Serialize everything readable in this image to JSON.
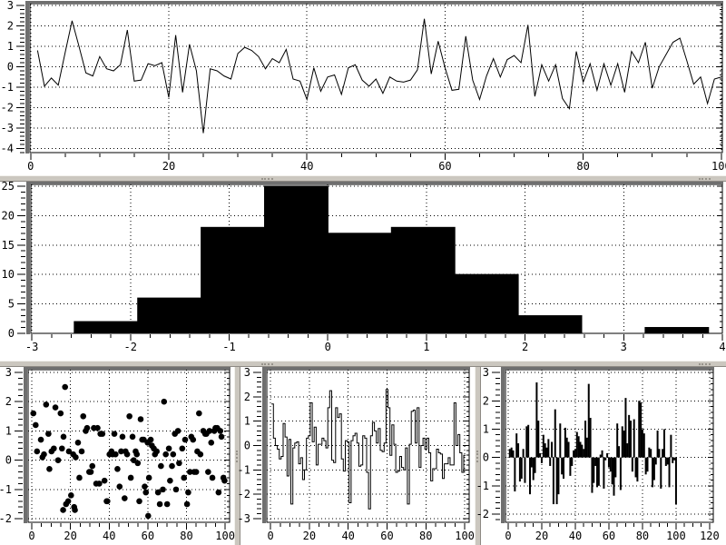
{
  "colors": {
    "background": "#ffffff",
    "plot_ink": "#000000",
    "grid": "#000000",
    "sash": "#cbc7bf",
    "sash_highlight": "#f2f1ed",
    "sash_shadow": "#8e8a84",
    "panel_shadow": "#6f6f6f"
  },
  "chart_data": [
    {
      "id": "noise-line",
      "type": "line",
      "title": "",
      "xlabel": "",
      "ylabel": "",
      "grid": true,
      "xlim": [
        -0.1,
        100.15
      ],
      "ylim": [
        -4.2,
        3.09
      ],
      "x_ticks": {
        "values": [
          0,
          20,
          40,
          60,
          80,
          100
        ],
        "labels": [
          "0",
          "20",
          "40",
          "60",
          "80",
          "100"
        ],
        "minor_step": 5
      },
      "y_ticks": {
        "values": [
          3,
          2,
          1,
          0,
          -1,
          -2,
          -3,
          -4
        ],
        "labels": [
          "3",
          "2",
          "1",
          "0",
          "-1",
          "-2",
          "-3",
          "-4"
        ],
        "minor_step": 0.2
      },
      "x_start": 1,
      "x_step": 1,
      "values": [
        0.8,
        -0.95,
        -0.55,
        -0.9,
        0.7,
        2.25,
        1.0,
        -0.3,
        -0.45,
        0.5,
        -0.1,
        -0.2,
        0.1,
        1.8,
        -0.7,
        -0.65,
        0.15,
        0.05,
        0.2,
        -1.5,
        1.55,
        -1.25,
        1.1,
        -0.2,
        -3.25,
        -0.1,
        -0.2,
        -0.45,
        -0.6,
        0.65,
        0.95,
        0.8,
        0.5,
        -0.1,
        0.4,
        0.2,
        0.85,
        -0.6,
        -0.7,
        -1.6,
        -0.05,
        -1.2,
        -0.5,
        -0.4,
        -1.35,
        -0.05,
        0.1,
        -0.65,
        -0.95,
        -0.6,
        -1.3,
        -0.5,
        -0.7,
        -0.75,
        -0.65,
        -0.15,
        2.35,
        -0.35,
        1.25,
        -0.05,
        -1.15,
        -1.1,
        1.5,
        -0.65,
        -1.6,
        -0.45,
        0.4,
        -0.5,
        0.35,
        0.55,
        0.2,
        2.05,
        -1.45,
        0.1,
        -0.7,
        0.1,
        -1.55,
        -2.05,
        0.75,
        -0.75,
        0.15,
        -1.15,
        0.15,
        -0.9,
        0.15,
        -1.25,
        0.75,
        0.2,
        1.2,
        -1.05,
        0.0,
        0.6,
        1.2,
        1.4,
        0.3,
        -0.85,
        -0.5,
        -1.8,
        -0.6,
        -0.5
      ]
    },
    {
      "id": "histogram",
      "type": "histogram",
      "title": "",
      "xlabel": "",
      "ylabel": "",
      "grid": true,
      "xlim": [
        -3.01,
        4.0
      ],
      "ylim": [
        0,
        25.3
      ],
      "x_ticks": {
        "values": [
          -3,
          -2,
          -1,
          0,
          1,
          2,
          3,
          4
        ],
        "labels": [
          "-3",
          "-2",
          "-1",
          "0",
          "1",
          "2",
          "3",
          "4"
        ],
        "minor_step": 0.2
      },
      "y_ticks": {
        "values": [
          0,
          5,
          10,
          15,
          20,
          25
        ],
        "labels": [
          "0",
          "5",
          "10",
          "15",
          "20",
          "25"
        ],
        "minor_step": 1
      },
      "bin_start": -2.57,
      "bin_width": 0.643,
      "counts": [
        2,
        6,
        18,
        25,
        17,
        18,
        10,
        3,
        0,
        1
      ]
    },
    {
      "id": "scatter",
      "type": "scatter",
      "title": "",
      "xlabel": "",
      "ylabel": "",
      "grid": true,
      "xlim": [
        -1.9,
        102.3
      ],
      "ylim": [
        -2.12,
        3.09
      ],
      "x_ticks": {
        "values": [
          0,
          20,
          40,
          60,
          80,
          100
        ],
        "labels": [
          "0",
          "20",
          "40",
          "60",
          "80",
          "100"
        ],
        "minor_step": 5
      },
      "y_ticks": {
        "values": [
          3,
          2,
          1,
          0,
          -1,
          -2
        ],
        "labels": [
          "3",
          "2",
          "1",
          "0",
          "-1",
          "-2"
        ],
        "minor_step": 0.2
      },
      "points": [
        [
          0.8,
          1.6
        ],
        [
          2,
          1.2
        ],
        [
          2.7,
          0.3
        ],
        [
          4.7,
          0.7
        ],
        [
          5.5,
          0.1
        ],
        [
          6.3,
          0.2
        ],
        [
          7.4,
          1.9
        ],
        [
          8.6,
          0.9
        ],
        [
          9.1,
          -0.3
        ],
        [
          10.2,
          0.3
        ],
        [
          11.4,
          0.4
        ],
        [
          12.2,
          1.8
        ],
        [
          13.6,
          0
        ],
        [
          14.9,
          1.6
        ],
        [
          15.6,
          0.4
        ],
        [
          16.2,
          -1.7
        ],
        [
          16.4,
          0.8
        ],
        [
          17.2,
          2.5
        ],
        [
          17.7,
          -1.5
        ],
        [
          18.8,
          -1.4
        ],
        [
          19.2,
          0.3
        ],
        [
          20.3,
          -1.2
        ],
        [
          21.4,
          0.2
        ],
        [
          21.9,
          -1.6
        ],
        [
          22.3,
          -1.7
        ],
        [
          22.7,
          0.1
        ],
        [
          23.9,
          0.6
        ],
        [
          24.6,
          -0.6
        ],
        [
          25.8,
          0.3
        ],
        [
          26.6,
          1.5
        ],
        [
          27.9,
          1
        ],
        [
          28.6,
          1.1
        ],
        [
          29.7,
          -0.4
        ],
        [
          30.5,
          -0.4
        ],
        [
          31.3,
          -0.2
        ],
        [
          32.1,
          1.1
        ],
        [
          33.3,
          -0.8
        ],
        [
          34,
          1.1
        ],
        [
          34.9,
          -0.8
        ],
        [
          35.5,
          0.9
        ],
        [
          36.5,
          0.9
        ],
        [
          37.6,
          -0.7
        ],
        [
          38.7,
          -1.4
        ],
        [
          39.1,
          -1.4
        ],
        [
          40.2,
          0.2
        ],
        [
          41.2,
          0.3
        ],
        [
          41.8,
          0.2
        ],
        [
          42.7,
          0.9
        ],
        [
          43.3,
          0.2
        ],
        [
          44.3,
          -0.3
        ],
        [
          45.4,
          -0.9
        ],
        [
          46.2,
          0.3
        ],
        [
          46.9,
          0.8
        ],
        [
          48,
          -1.3
        ],
        [
          48.5,
          0.3
        ],
        [
          49.3,
          0.2
        ],
        [
          50.5,
          1.5
        ],
        [
          51.2,
          -0.6
        ],
        [
          52.1,
          0.8
        ],
        [
          52.7,
          0
        ],
        [
          53.7,
          0.3
        ],
        [
          54.3,
          0.2
        ],
        [
          54.8,
          -0.1
        ],
        [
          55.6,
          -1.4
        ],
        [
          56.3,
          1.4
        ],
        [
          57.1,
          0.7
        ],
        [
          57.9,
          0.7
        ],
        [
          58.4,
          -0.9
        ],
        [
          59,
          -1.1
        ],
        [
          59.9,
          0.6
        ],
        [
          60.2,
          -1.9
        ],
        [
          60.6,
          -0.6
        ],
        [
          61.5,
          0.7
        ],
        [
          62.1,
          0.5
        ],
        [
          63.1,
          0.4
        ],
        [
          63.7,
          0.2
        ],
        [
          64.6,
          0.3
        ],
        [
          65.3,
          -1.1
        ],
        [
          66.2,
          -1.5
        ],
        [
          66.8,
          -0.2
        ],
        [
          67.8,
          -1
        ],
        [
          68.4,
          2
        ],
        [
          69.3,
          0.2
        ],
        [
          70,
          -1.5
        ],
        [
          70.9,
          0.4
        ],
        [
          71.5,
          -0.7
        ],
        [
          72.5,
          -0.2
        ],
        [
          73.1,
          0.2
        ],
        [
          74,
          0.9
        ],
        [
          74.6,
          -1
        ],
        [
          75.6,
          1
        ],
        [
          76.2,
          -0.1
        ],
        [
          77.8,
          0.4
        ],
        [
          78.7,
          -0.6
        ],
        [
          79.3,
          0.7
        ],
        [
          80.3,
          -1.5
        ],
        [
          80.9,
          -1.1
        ],
        [
          81.8,
          -0.4
        ],
        [
          82.5,
          0.8
        ],
        [
          83.4,
          0.7
        ],
        [
          84,
          -0.4
        ],
        [
          85,
          -0.4
        ],
        [
          85.6,
          0.3
        ],
        [
          86.5,
          1.6
        ],
        [
          87.2,
          0.2
        ],
        [
          88.7,
          1
        ],
        [
          89.7,
          0.9
        ],
        [
          90.3,
          0.9
        ],
        [
          91.2,
          -0.4
        ],
        [
          91.9,
          1
        ],
        [
          92.8,
          0.6
        ],
        [
          93.4,
          -0.6
        ],
        [
          94.4,
          1
        ],
        [
          95,
          1.1
        ],
        [
          95.9,
          1.1
        ],
        [
          96.6,
          -1.1
        ],
        [
          97.5,
          1
        ],
        [
          98.1,
          0.8
        ],
        [
          99.1,
          -0.6
        ],
        [
          99.7,
          -0.7
        ]
      ]
    },
    {
      "id": "steps",
      "type": "steps",
      "title": "",
      "xlabel": "",
      "ylabel": "",
      "grid": true,
      "xlim": [
        -1.9,
        102.3
      ],
      "ylim": [
        -3.15,
        3.11
      ],
      "x_ticks": {
        "values": [
          0,
          20,
          40,
          60,
          80,
          100
        ],
        "labels": [
          "0",
          "20",
          "40",
          "60",
          "80",
          "100"
        ],
        "minor_step": 5
      },
      "y_ticks": {
        "values": [
          3,
          2,
          1,
          0,
          -1,
          -2,
          -3
        ],
        "labels": [
          "3",
          "2",
          "1",
          "0",
          "-1",
          "-2",
          "-3"
        ],
        "minor_step": 0.2
      },
      "x_start": 1,
      "x_step": 1,
      "values": [
        1.7,
        0.3,
        0.0,
        -0.15,
        -0.55,
        -0.45,
        0.9,
        0.35,
        -1.25,
        0.25,
        -2.4,
        -0.1,
        0.1,
        0.15,
        -0.75,
        -0.5,
        -1.4,
        -1.0,
        0.3,
        0.4,
        1.75,
        0.15,
        0.75,
        -0.8,
        0.05,
        0.05,
        0.3,
        0.2,
        -0.1,
        1.55,
        2.25,
        -0.6,
        -0.7,
        1.55,
        1.15,
        1.3,
        -0.55,
        -1.05,
        0.2,
        0.15,
        -2.35,
        0.2,
        0.4,
        0.5,
        0.1,
        -0.85,
        -0.8,
        0.4,
        0.3,
        -1.1,
        -2.6,
        0.4,
        0.95,
        0.6,
        0.1,
        0.7,
        -0.2,
        -0.25,
        0.1,
        2.3,
        1.55,
        -0.4,
        0.85,
        0.05,
        -1.1,
        -1.05,
        -0.45,
        -0.9,
        -1.0,
        -0.1,
        -2.4,
        0.05,
        1.4,
        1.45,
        0.1,
        1.55,
        -0.9,
        0.0,
        0.3,
        -0.15,
        0.3,
        -0.3,
        -1.45,
        -0.95,
        -0.95,
        -0.15,
        -0.3,
        -0.35,
        -1.35,
        -0.75,
        -0.75,
        -0.5,
        -0.8,
        -0.8,
        1.75,
        0.0,
        0.45,
        -0.3,
        -1.1,
        -0.4
      ]
    },
    {
      "id": "impulses",
      "type": "impulses",
      "title": "",
      "xlabel": "",
      "ylabel": "",
      "grid": true,
      "xlim": [
        -1.6,
        122.2
      ],
      "ylim": [
        -2.29,
        3.1
      ],
      "x_ticks": {
        "values": [
          0,
          20,
          40,
          60,
          80,
          100,
          120
        ],
        "labels": [
          "0",
          "20",
          "40",
          "60",
          "80",
          "100",
          "120"
        ],
        "minor_step": 5
      },
      "y_ticks": {
        "values": [
          3,
          2,
          1,
          0,
          -1,
          -2
        ],
        "labels": [
          "3",
          "2",
          "1",
          "0",
          "-1",
          "-2"
        ],
        "minor_step": 0.2
      },
      "x_start": 1,
      "x_step": 1,
      "values": [
        0.3,
        0.35,
        0.25,
        -1.2,
        0.85,
        0.5,
        -0.85,
        -0.75,
        0.3,
        -0.9,
        1.1,
        1.15,
        -1.3,
        -0.35,
        -0.8,
        -0.55,
        2.65,
        1.3,
        0.15,
        -0.2,
        0.8,
        0.5,
        0.35,
        0.65,
        -0.3,
        0.55,
        -1.65,
        1.7,
        -1.65,
        -1.3,
        1.2,
        -0.6,
        -0.75,
        1.05,
        0.7,
        0.55,
        -0.65,
        -0.3,
        0.25,
        0.3,
        0.9,
        0.75,
        0.55,
        0.45,
        0.3,
        1.3,
        0.7,
        2.6,
        1.4,
        -1.25,
        -0.9,
        -0.3,
        -1.05,
        -1.0,
        0.1,
        0.25,
        -1.1,
        -0.1,
        0.15,
        -0.35,
        -0.5,
        -0.95,
        -1.35,
        -0.7,
        1.2,
        0.4,
        -1.15,
        1.1,
        0.95,
        2.1,
        0.5,
        1.5,
        1.3,
        -0.5,
        1.35,
        -0.7,
        -0.85,
        2.0,
        1.95,
        1.0,
        0.85,
        -0.6,
        -0.5,
        0.35,
        0.3,
        -1.05,
        -0.8,
        -0.25,
        0.95,
        0.3,
        -1.1,
        0.3,
        1.0,
        -0.3,
        -0.25,
        -1.05,
        0.8,
        -0.2,
        -0.1,
        -1.65
      ]
    }
  ]
}
